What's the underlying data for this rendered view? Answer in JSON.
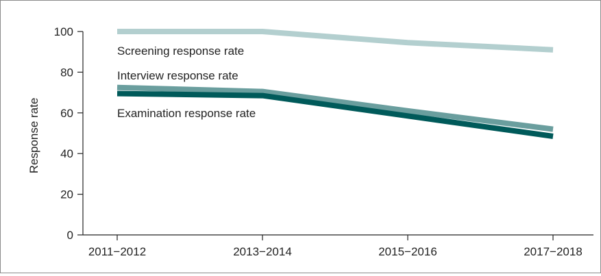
{
  "chart_data": {
    "type": "line",
    "title": "",
    "xlabel": "",
    "ylabel": "Response rate",
    "ylim": [
      0,
      100
    ],
    "yticks": [
      0,
      20,
      40,
      60,
      80,
      100
    ],
    "categories": [
      "2011−2012",
      "2013−2014",
      "2015−2016",
      "2017−2018"
    ],
    "grid": false,
    "series": [
      {
        "name": "Screening response rate",
        "values": [
          100,
          100,
          94.5,
          91
        ],
        "color": "#b3cfcf"
      },
      {
        "name": "Interview response rate",
        "values": [
          72.5,
          70.5,
          61,
          52
        ],
        "color": "#6a9e9e"
      },
      {
        "name": "Examination response rate",
        "values": [
          69.5,
          68.5,
          58.5,
          48.5
        ],
        "color": "#005a5a"
      }
    ]
  }
}
